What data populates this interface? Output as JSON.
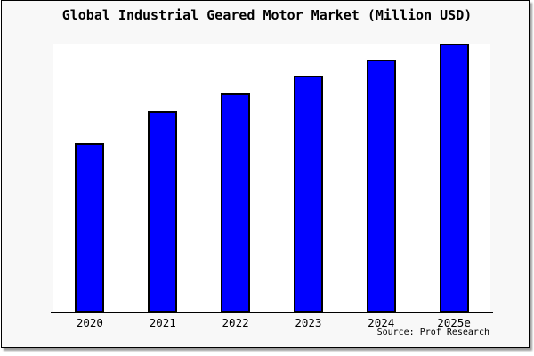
{
  "chart_data": {
    "type": "bar",
    "title": "Global Industrial Geared Motor Market (Million USD)",
    "categories": [
      "2020",
      "2021",
      "2022",
      "2023",
      "2024",
      "2025e"
    ],
    "values": [
      63,
      75,
      81.5,
      88,
      94,
      100
    ],
    "ylim": [
      0,
      100
    ],
    "xlabel": "",
    "ylabel": "",
    "value_note": "no y-axis ticks or data labels shown; values estimated relative to tallest bar (2025e = 100)",
    "grid": false,
    "legend": "none"
  },
  "source": {
    "label": "Source: Prof Research"
  },
  "colors": {
    "bar_fill": "#0000ff",
    "bar_border": "#000000",
    "plot_bg": "#ffffff",
    "frame_bg": "#f8f8f8",
    "frame_border": "#000000",
    "shadow": "#9b9b9b",
    "axis": "#000000",
    "text": "#000000"
  }
}
